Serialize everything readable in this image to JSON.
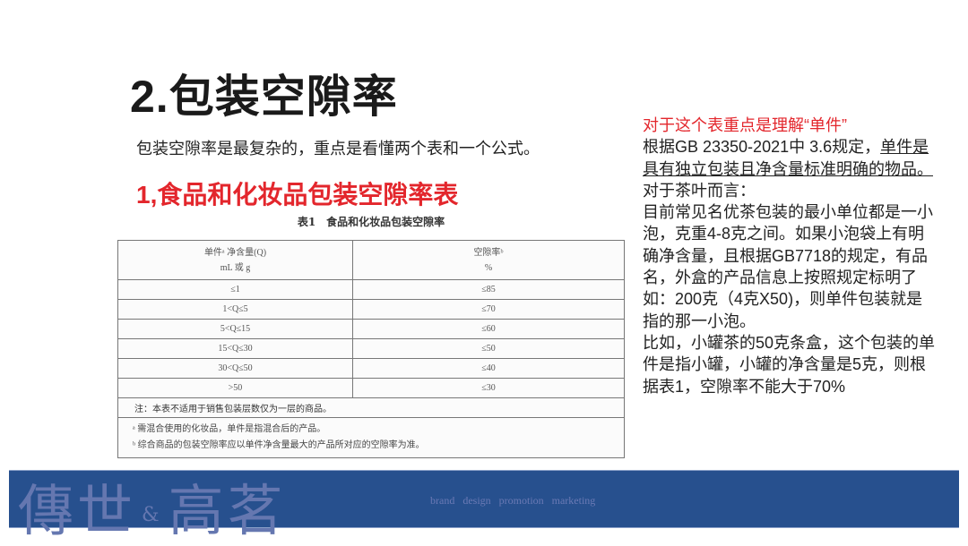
{
  "title": "2.包装空隙率",
  "subtitle": "包装空隙率是最复杂的，重点是看懂两个表和一个公式。",
  "section_heading": "1,食品和化妆品包装空隙率表",
  "table": {
    "caption": "表1　食品和化妆品包装空隙率",
    "headers": [
      [
        "单件ᵃ 净含量(Q)",
        "mL 或 g"
      ],
      [
        "空隙率ᵇ",
        "%"
      ]
    ],
    "rows": [
      [
        "≤1",
        "≤85"
      ],
      [
        "1<Q≤5",
        "≤70"
      ],
      [
        "5<Q≤15",
        "≤60"
      ],
      [
        "15<Q≤30",
        "≤50"
      ],
      [
        "30<Q≤50",
        "≤40"
      ],
      [
        ">50",
        "≤30"
      ]
    ],
    "note": "注：本表不适用于销售包装层数仅为一层的商品。",
    "footnotes": [
      "ᵃ 需混合使用的化妆品，单件是指混合后的产品。",
      "ᵇ 综合商品的包装空隙率应以单件净含量最大的产品所对应的空隙率为准。"
    ]
  },
  "explanation": {
    "highlight": "对于这个表重点是理解“单件”",
    "p1_prefix": "根据GB 23350-2021中 3.6规定，",
    "p1_underlined": "单件是具有独立包装且净含量标准明确的物品。",
    "p2": "对于茶叶而言：",
    "p3": "目前常见名优茶包装的最小单位都是一小泡，克重4-8克之间。如果小泡袋上有明确净含量，且根据GB7718的规定，有品名，外盒的产品信息上按照规定标明了如：200克（4克X50)，则单件包装就是指的那一小泡。",
    "p4": "比如，小罐茶的50克条盒，这个包装的单件是指小罐，小罐的净含量是5克，则根据表1，空隙率不能大于70%"
  },
  "banner": {
    "logo_left": "傳世",
    "logo_amp": "&",
    "logo_right": "高茗",
    "tagline": "brand  design  promotion  marketing",
    "color": "#27508e"
  },
  "colors": {
    "accent_red": "#e3262c"
  }
}
